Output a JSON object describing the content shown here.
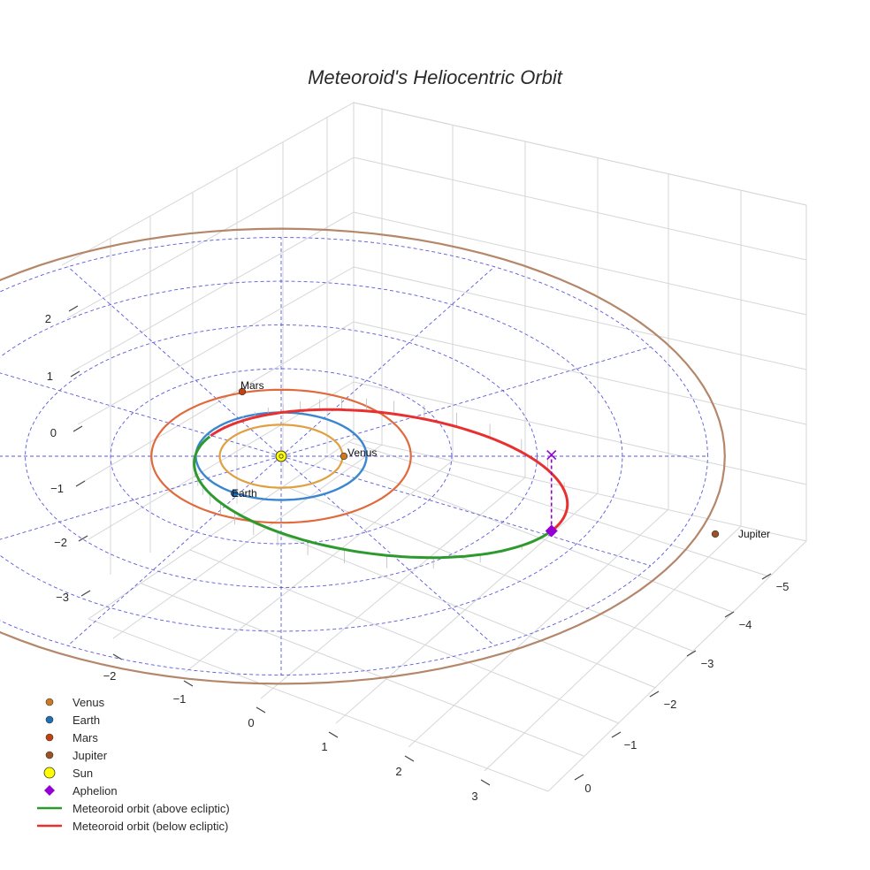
{
  "chart_data": {
    "type": "scatter",
    "title": "Meteoroid's Heliocentric Orbit",
    "x_ticks": [
      "−2",
      "−1",
      "0",
      "1",
      "2",
      "3"
    ],
    "y_ticks": [
      "−5",
      "−4",
      "−3",
      "−2",
      "−1",
      "0"
    ],
    "z_ticks": [
      "2",
      "1",
      "0",
      "−1",
      "−2",
      "−3"
    ],
    "ecliptic_rings_au": [
      1,
      2,
      3,
      4,
      5
    ],
    "planets": [
      {
        "name": "Venus",
        "label": "Venus",
        "a_au": 0.72,
        "color": "#cc7a1f",
        "orbit_color": "#e0a040"
      },
      {
        "name": "Earth",
        "label": "Earth",
        "a_au": 1.0,
        "color": "#1f6fb5",
        "orbit_color": "#3a86cf"
      },
      {
        "name": "Mars",
        "label": "Mars",
        "a_au": 1.52,
        "color": "#c4410f",
        "orbit_color": "#e06a3c"
      },
      {
        "name": "Jupiter",
        "label": "Jupiter",
        "a_au": 5.2,
        "color": "#9c5222",
        "orbit_color": "#b5876a"
      }
    ],
    "sun": {
      "name": "Sun",
      "color": "#ffff00"
    },
    "aphelion": {
      "name": "Aphelion",
      "color": "#9400d3",
      "distance_au": 3.6
    },
    "meteoroid_orbit": {
      "perihelion_au": 0.95,
      "aphelion_au": 3.6,
      "above_color": "#2e9a2e",
      "below_color": "#e83030"
    },
    "legend": [
      {
        "label": "Venus",
        "marker": "circle",
        "color": "#cc7a1f"
      },
      {
        "label": "Earth",
        "marker": "circle",
        "color": "#1f6fb5"
      },
      {
        "label": "Mars",
        "marker": "circle",
        "color": "#c4410f"
      },
      {
        "label": "Jupiter",
        "marker": "circle",
        "color": "#9c5222"
      },
      {
        "label": "Sun",
        "marker": "sun",
        "color": "#ffff00"
      },
      {
        "label": "Aphelion",
        "marker": "diamond",
        "color": "#9400d3"
      },
      {
        "label": "Meteoroid orbit (above ecliptic)",
        "marker": "line",
        "color": "#2e9a2e"
      },
      {
        "label": "Meteoroid orbit (below ecliptic)",
        "marker": "line",
        "color": "#e83030"
      }
    ],
    "legend_position": "bottom-left",
    "grid": true
  }
}
